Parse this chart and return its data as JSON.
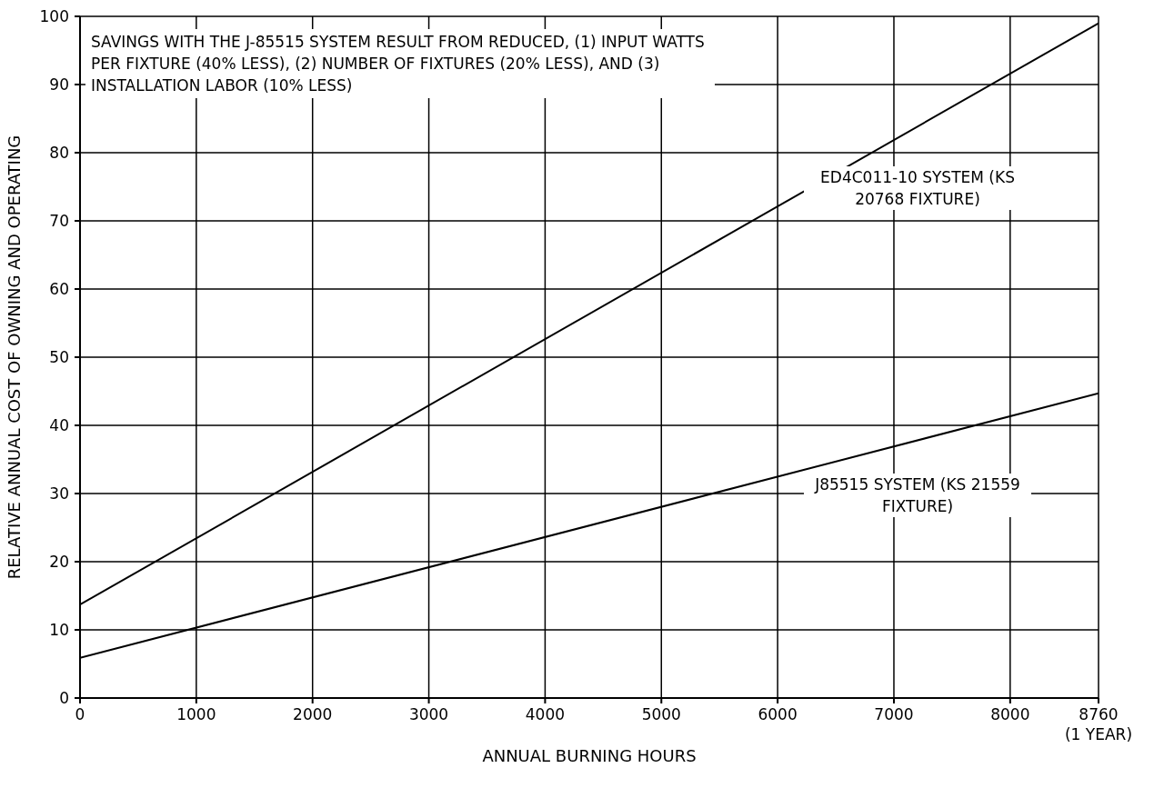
{
  "chart_data": {
    "type": "line",
    "xlabel": "ANNUAL BURNING HOURS",
    "ylabel": "RELATIVE ANNUAL COST OF OWNING AND OPERATING",
    "annotations": [
      "SAVINGS WITH THE J-85515 SYSTEM RESULT FROM REDUCED, (1) INPUT WATTS PER FIXTURE (40% LESS), (2) NUMBER OF FIXTURES (20% LESS), AND (3) INSTALLATION LABOR (10% LESS)"
    ],
    "x": [
      0,
      8760
    ],
    "series": [
      {
        "name": "ED4C011-10 SYSTEM (KS 20768 FIXTURE)",
        "color": "#000000",
        "values": [
          13.7,
          99
        ]
      },
      {
        "name": "J85515 SYSTEM (KS 21559 FIXTURE)",
        "color": "#000000",
        "values": [
          5.9,
          44.7
        ]
      }
    ],
    "xlim": [
      0,
      8760
    ],
    "xticks": [
      0,
      1000,
      2000,
      3000,
      4000,
      5000,
      6000,
      7000,
      8000,
      {
        "value": 8760,
        "label": "8760\n(1 YEAR)"
      }
    ],
    "ylim": [
      0,
      100
    ],
    "yticks": [
      0,
      10,
      20,
      30,
      40,
      50,
      60,
      70,
      80,
      90,
      100
    ],
    "grid": true,
    "marker": "none",
    "line_style": "solid"
  }
}
